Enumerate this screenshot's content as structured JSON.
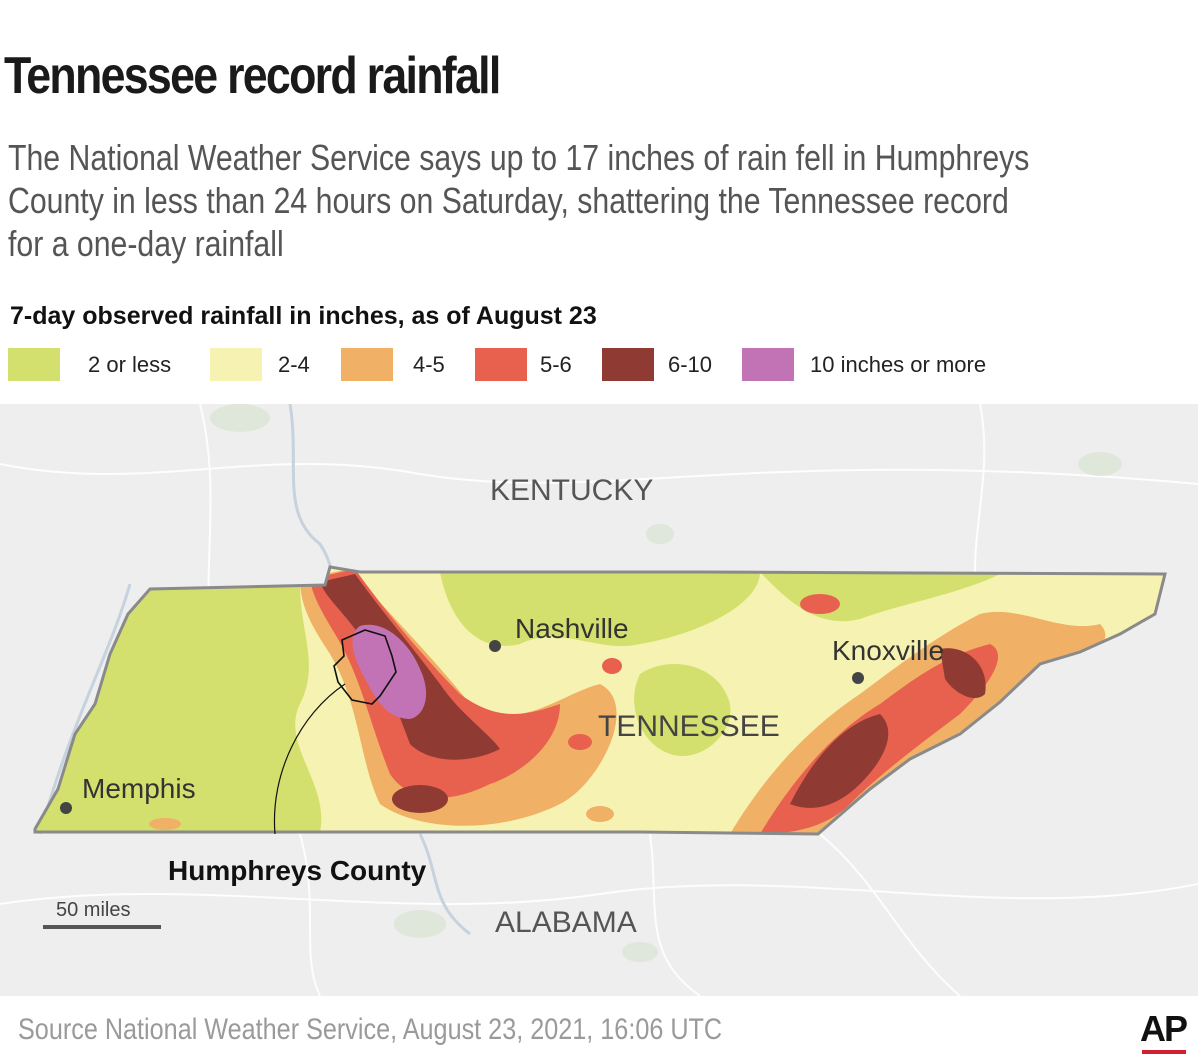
{
  "title": "Tennessee record rainfall",
  "subtitle": "The National Weather Service says up to 17 inches of rain fell in Humphreys County in less than 24 hours on Saturday, shattering the Tennessee record for a one-day rainfall",
  "legend": {
    "title": "7-day observed rainfall in inches, as of August 23",
    "items": [
      {
        "label": "2 or less",
        "color": "#d3e06e"
      },
      {
        "label": "2-4",
        "color": "#f6f3b2"
      },
      {
        "label": "4-5",
        "color": "#f0b066"
      },
      {
        "label": "5-6",
        "color": "#e8604e"
      },
      {
        "label": "6-10",
        "color": "#8f3b33"
      },
      {
        "label": "10 inches or more",
        "color": "#c173b6"
      }
    ]
  },
  "map": {
    "labels": {
      "kentucky": "KENTUCKY",
      "tennessee": "TENNESSEE",
      "alabama": "ALABAMA",
      "nashville": "Nashville",
      "knoxville": "Knoxville",
      "memphis": "Memphis",
      "humphreys": "Humphreys County"
    },
    "scale_label": "50 miles"
  },
  "source": "Source  National Weather Service, August 23, 2021, 16:06 UTC",
  "logo": "AP"
}
